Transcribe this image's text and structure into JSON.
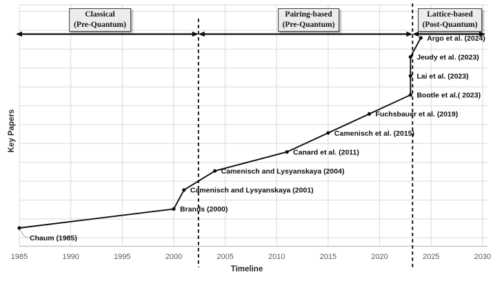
{
  "chart_data": {
    "type": "line",
    "title": "",
    "xlabel": "Timeline",
    "ylabel": "Key Papers",
    "x_ticks": [
      1985,
      1990,
      1995,
      2000,
      2005,
      2010,
      2015,
      2020,
      2025,
      2030
    ],
    "xlim": [
      1985,
      2030
    ],
    "ylim_note": "y axis is ordinal sequence of key papers, 1 (bottom) to 11 (top), no y tick labels",
    "grid": true,
    "legend": "none",
    "points": [
      {
        "label": "Chaum (1985)",
        "year": 1985,
        "seq": 1,
        "label_position": "below-right"
      },
      {
        "label": "Brands (2000)",
        "year": 2000,
        "seq": 2
      },
      {
        "label": "Camenisch and Lysyanskaya (2001)",
        "year": 2001,
        "seq": 3
      },
      {
        "label": "Camenisch and Lysyanskaya (2004)",
        "year": 2004,
        "seq": 4
      },
      {
        "label": "Canard et al. (2011)",
        "year": 2011,
        "seq": 5
      },
      {
        "label": "Camenisch et al. (2015)",
        "year": 2015,
        "seq": 6
      },
      {
        "label": "Fuchsbauer et al. (2019)",
        "year": 2019,
        "seq": 7
      },
      {
        "label": "Bootle et al.( 2023)",
        "year": 2023,
        "seq": 8
      },
      {
        "label": "Lai et al. (2023)",
        "year": 2023,
        "seq": 9
      },
      {
        "label": "Jeudy et al. (2023)",
        "year": 2023,
        "seq": 10
      },
      {
        "label": "Argo et al. (2024)",
        "year": 2024,
        "seq": 11
      }
    ],
    "era_dividers": [
      {
        "year": 2002.4,
        "style": "dashed"
      },
      {
        "year": 2023.2,
        "style": "dashed"
      }
    ],
    "eras": [
      {
        "line1": "Classical",
        "line2": "(Pre-Quantum)"
      },
      {
        "line1": "Pairing-based",
        "line2": "(Pre-Quantum)"
      },
      {
        "line1": "Lattice-based",
        "line2": "(Post-Quantum)"
      }
    ],
    "colors": {
      "line": "#0d0d0d",
      "grid": "#d9d9d9",
      "axis": "#bfbfbf",
      "tick_text": "#595959",
      "label_text": "#0d0d0d",
      "divider": "#000000",
      "box_fill": "#ececec",
      "box_border": "#404040",
      "leader": "#a6a6a6",
      "background": "#ffffff"
    }
  }
}
